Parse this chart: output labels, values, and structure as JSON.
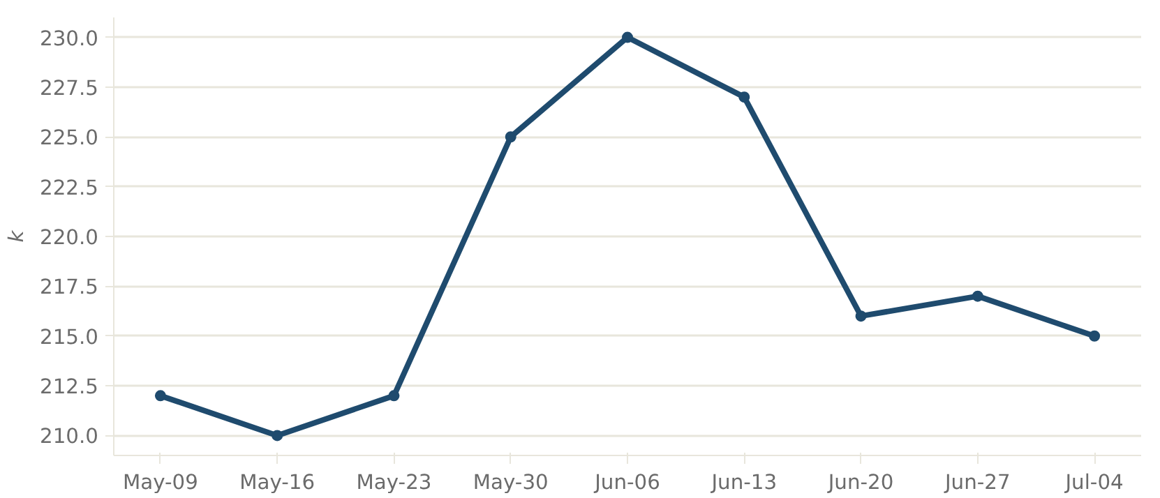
{
  "chart_data": {
    "type": "line",
    "ylabel": "k",
    "categories": [
      "May-09",
      "May-16",
      "May-23",
      "May-30",
      "Jun-06",
      "Jun-13",
      "Jun-20",
      "Jun-27",
      "Jul-04"
    ],
    "series": [
      {
        "color": "#1f4b6e",
        "values": [
          212,
          210,
          212,
          225,
          230,
          227,
          216,
          217,
          215
        ]
      }
    ],
    "ylim": [
      209,
      231
    ],
    "yticks": [
      {
        "value": 210,
        "label": "210.0"
      },
      {
        "value": 212.5,
        "label": "212.5"
      },
      {
        "value": 215,
        "label": "215.0"
      },
      {
        "value": 217.5,
        "label": "217.5"
      },
      {
        "value": 220,
        "label": "220.0"
      },
      {
        "value": 222.5,
        "label": "222.5"
      },
      {
        "value": 225,
        "label": "225.0"
      },
      {
        "value": 227.5,
        "label": "227.5"
      },
      {
        "value": 230,
        "label": "230.0"
      }
    ],
    "grid": "y",
    "marker": "circle",
    "line_style": "solid"
  }
}
